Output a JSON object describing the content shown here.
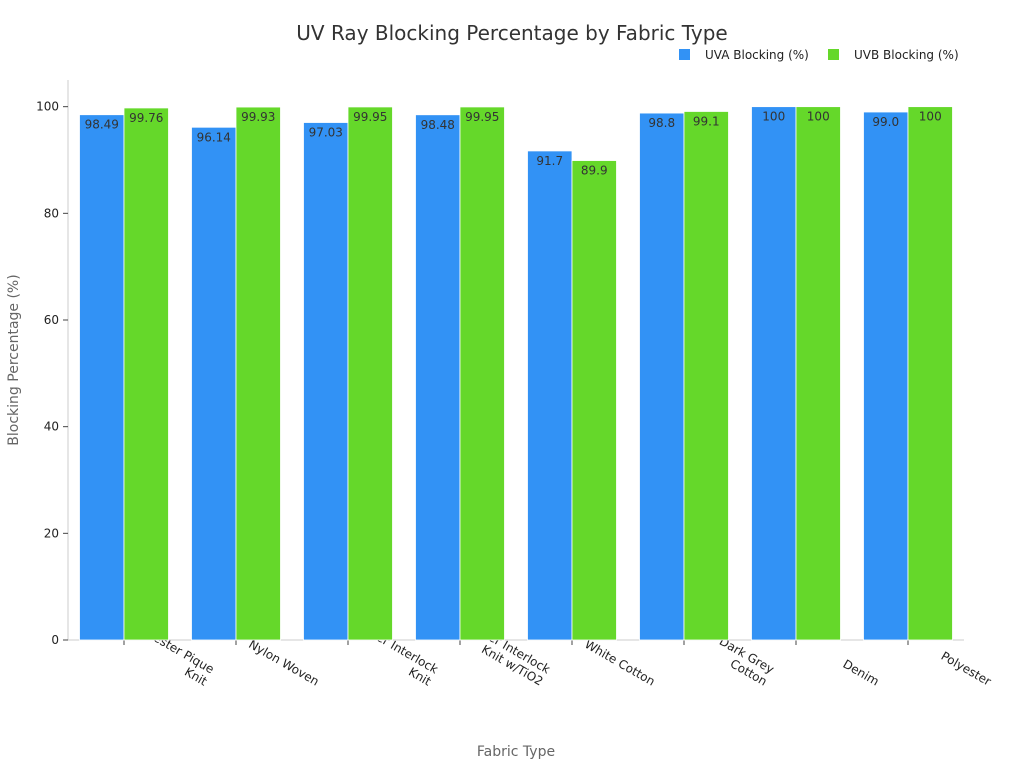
{
  "chart_data": {
    "type": "bar",
    "title": "UV Ray Blocking Percentage by Fabric Type",
    "xlabel": "Fabric Type",
    "ylabel": "Blocking Percentage (%)",
    "ylim": [
      0,
      105
    ],
    "yticks": [
      0,
      20,
      40,
      60,
      80,
      100
    ],
    "grid": false,
    "legend_position": "top-right",
    "categories": [
      [
        "Polyester Pique",
        "Knit"
      ],
      [
        "Nylon Woven"
      ],
      [
        "Polyester Interlock",
        "Knit"
      ],
      [
        "Polyester Interlock",
        "Knit w/TiO2"
      ],
      [
        "White Cotton"
      ],
      [
        "Dark Grey",
        "Cotton"
      ],
      [
        "Denim"
      ],
      [
        "Polyester"
      ]
    ],
    "series": [
      {
        "name": "UVA Blocking (%)",
        "color": "#3292f5",
        "values": [
          98.49,
          96.14,
          97.03,
          98.48,
          91.7,
          98.8,
          100,
          99.0
        ],
        "labels": [
          "98.49",
          "96.14",
          "97.03",
          "98.48",
          "91.7",
          "98.8",
          "100",
          "99.0"
        ]
      },
      {
        "name": "UVB Blocking (%)",
        "color": "#65d82a",
        "values": [
          99.76,
          99.93,
          99.95,
          99.95,
          89.9,
          99.1,
          100,
          100
        ],
        "labels": [
          "99.76",
          "99.93",
          "99.95",
          "99.95",
          "89.9",
          "99.1",
          "100",
          "100"
        ]
      }
    ]
  }
}
